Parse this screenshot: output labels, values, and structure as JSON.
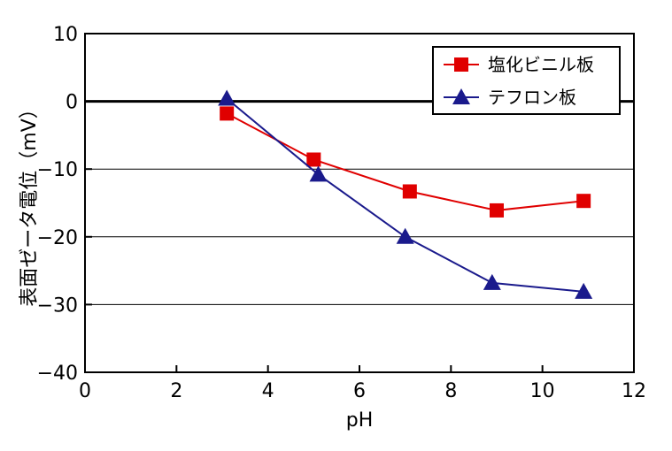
{
  "chart_data": {
    "type": "line",
    "xlabel": "pH",
    "ylabel": "表面ゼータ電位（mV）",
    "xlim": [
      0,
      12
    ],
    "ylim": [
      -40,
      10
    ],
    "xticks": [
      0,
      2,
      4,
      6,
      8,
      10,
      12
    ],
    "yticks": [
      10,
      0,
      -10,
      -20,
      -30,
      -40
    ],
    "xtick_labels": [
      "0",
      "2",
      "4",
      "6",
      "8",
      "10",
      "12"
    ],
    "ytick_labels": [
      "10",
      "0",
      "−10",
      "−20",
      "−30",
      "−40"
    ],
    "grid": "horizontal",
    "zero_line": true,
    "legend_position": "top-right",
    "series": [
      {
        "name": "塩化ビニル板",
        "color": "#e00000",
        "marker": "square",
        "x": [
          3.1,
          5.0,
          7.1,
          9.0,
          10.9
        ],
        "y": [
          -1.8,
          -8.6,
          -13.3,
          -16.1,
          -14.7
        ]
      },
      {
        "name": "テフロン板",
        "color": "#1a1a8c",
        "marker": "triangle",
        "x": [
          3.1,
          5.1,
          7.0,
          8.9,
          10.9
        ],
        "y": [
          0.4,
          -10.8,
          -20.0,
          -26.8,
          -28.1
        ]
      }
    ]
  }
}
